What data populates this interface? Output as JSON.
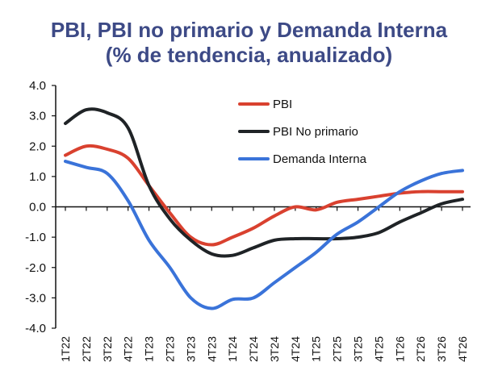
{
  "chart_data": {
    "type": "line",
    "title": "PBI, PBI no primario y Demanda Interna",
    "subtitle": "(% de tendencia, anualizado)",
    "categories": [
      "1T22",
      "2T22",
      "3T22",
      "4T22",
      "1T23",
      "2T23",
      "3T23",
      "4T23",
      "1T24",
      "2T24",
      "3T24",
      "4T24",
      "1T25",
      "2T25",
      "3T25",
      "4T25",
      "1T26",
      "2T26",
      "3T26",
      "4T26"
    ],
    "ylim": [
      -4.0,
      4.0
    ],
    "yticks": [
      "4.0",
      "3.0",
      "2.0",
      "1.0",
      "0.0",
      "-1.0",
      "-2.0",
      "-3.0",
      "-4.0"
    ],
    "legend_position": "top-right",
    "series": [
      {
        "name": "PBI",
        "color": "#d9412f",
        "values": [
          1.7,
          2.0,
          1.9,
          1.6,
          0.7,
          -0.2,
          -1.0,
          -1.25,
          -1.0,
          -0.7,
          -0.3,
          0.0,
          -0.1,
          0.15,
          0.25,
          0.35,
          0.45,
          0.5,
          0.5,
          0.5
        ]
      },
      {
        "name": "PBI No primario",
        "color": "#1f2326",
        "values": [
          2.75,
          3.2,
          3.1,
          2.6,
          0.7,
          -0.4,
          -1.1,
          -1.55,
          -1.6,
          -1.35,
          -1.1,
          -1.05,
          -1.05,
          -1.05,
          -1.0,
          -0.85,
          -0.5,
          -0.2,
          0.1,
          0.25
        ]
      },
      {
        "name": "Demanda Interna",
        "color": "#3a73d9",
        "values": [
          1.5,
          1.3,
          1.1,
          0.2,
          -1.1,
          -2.0,
          -3.0,
          -3.35,
          -3.05,
          -3.0,
          -2.5,
          -2.0,
          -1.5,
          -0.9,
          -0.5,
          0.0,
          0.5,
          0.85,
          1.1,
          1.2
        ]
      }
    ]
  }
}
